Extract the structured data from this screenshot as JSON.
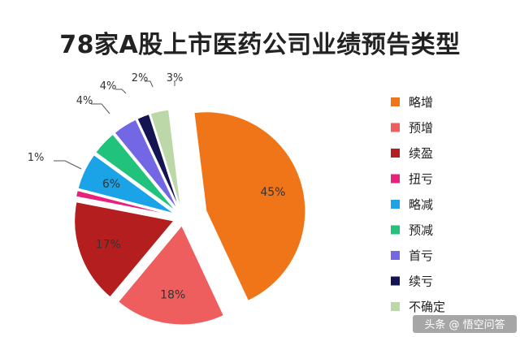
{
  "chart_data": {
    "type": "pie",
    "title": "78家A股上市医药公司业绩预告类型",
    "categories": [
      "略增",
      "预增",
      "续盈",
      "扭亏",
      "略减",
      "预减",
      "首亏",
      "续亏",
      "不确定"
    ],
    "values": [
      45,
      18,
      17,
      1,
      6,
      4,
      4,
      2,
      3
    ],
    "value_labels": [
      "45%",
      "18%",
      "17%",
      "1%",
      "6%",
      "4%",
      "4%",
      "2%",
      "3%"
    ],
    "colors": [
      "#f07518",
      "#ee5e5e",
      "#b41e1e",
      "#e8217a",
      "#1aa3e6",
      "#21c27b",
      "#7367e6",
      "#141452",
      "#bcd8a8"
    ],
    "exploded": true,
    "legend_position": "right"
  },
  "watermark": {
    "text": "头条 @ 悟空问答"
  }
}
